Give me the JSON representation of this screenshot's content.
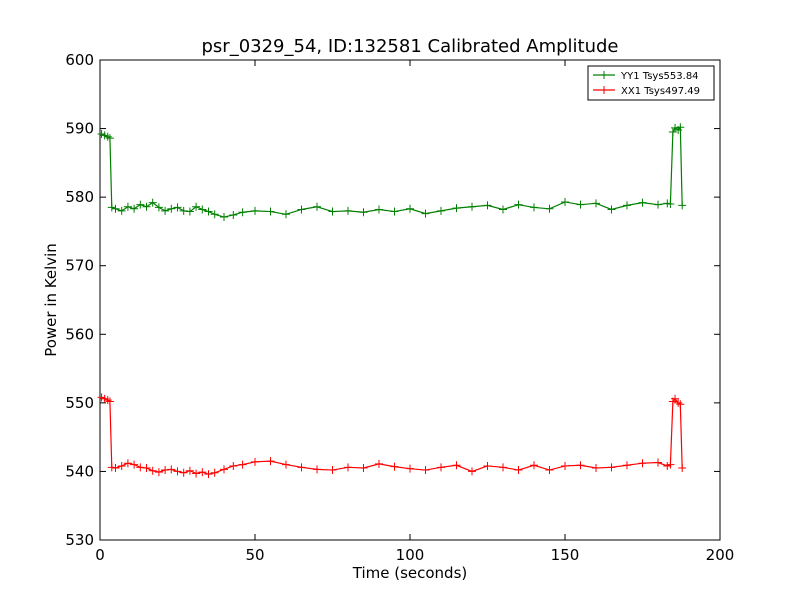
{
  "chart_data": {
    "type": "line",
    "title": "psr_0329_54, ID:132581 Calibrated Amplitude",
    "xlabel": "Time (seconds)",
    "ylabel": "Power in Kelvin",
    "xlim": [
      0,
      200
    ],
    "ylim": [
      530,
      600
    ],
    "xticks": [
      0,
      50,
      100,
      150,
      200
    ],
    "yticks": [
      530,
      540,
      550,
      560,
      570,
      580,
      590,
      600
    ],
    "grid": false,
    "legend_position": "top-right",
    "marker": "plus",
    "series": [
      {
        "name": "YY1 Tsys553.84",
        "color": "#008000",
        "x": [
          0.5,
          1.5,
          2.5,
          3.2,
          3.8,
          5,
          7,
          9,
          11,
          13,
          15,
          17,
          19,
          21,
          23,
          25,
          27,
          29,
          31,
          33,
          35,
          37,
          40,
          43,
          46,
          50,
          55,
          60,
          65,
          70,
          75,
          80,
          85,
          90,
          95,
          100,
          105,
          110,
          115,
          120,
          125,
          130,
          135,
          140,
          145,
          150,
          155,
          160,
          165,
          170,
          175,
          180,
          183,
          184,
          184.8,
          185.5,
          186.5,
          187.2,
          187.8
        ],
        "y": [
          589.2,
          589.0,
          588.8,
          588.6,
          578.5,
          578.3,
          578.0,
          578.6,
          578.3,
          578.9,
          578.6,
          579.2,
          578.5,
          578.0,
          578.3,
          578.5,
          578.0,
          577.9,
          578.6,
          578.2,
          577.9,
          577.5,
          577.1,
          577.4,
          577.8,
          578.0,
          577.9,
          577.5,
          578.2,
          578.6,
          577.9,
          578.0,
          577.8,
          578.2,
          577.9,
          578.3,
          577.6,
          578.0,
          578.4,
          578.6,
          578.8,
          578.2,
          578.9,
          578.5,
          578.3,
          579.3,
          578.9,
          579.1,
          578.2,
          578.8,
          579.2,
          578.9,
          579.1,
          579.0,
          589.5,
          590.1,
          589.8,
          590.2,
          578.8
        ]
      },
      {
        "name": "XX1 Tsys497.49",
        "color": "#ff0000",
        "x": [
          0.5,
          1.5,
          2.5,
          3.2,
          3.8,
          5,
          7,
          9,
          11,
          13,
          15,
          17,
          19,
          21,
          23,
          25,
          27,
          29,
          31,
          33,
          35,
          37,
          40,
          43,
          46,
          50,
          55,
          60,
          65,
          70,
          75,
          80,
          85,
          90,
          95,
          100,
          105,
          110,
          115,
          120,
          125,
          130,
          135,
          140,
          145,
          150,
          155,
          160,
          165,
          170,
          175,
          180,
          183,
          184,
          184.8,
          185.5,
          186.5,
          187.2,
          187.8
        ],
        "y": [
          550.8,
          550.6,
          550.4,
          550.2,
          540.6,
          540.5,
          540.8,
          541.2,
          541.0,
          540.6,
          540.5,
          540.1,
          539.9,
          540.2,
          540.3,
          540.0,
          539.8,
          540.1,
          539.7,
          539.9,
          539.6,
          539.8,
          540.3,
          540.8,
          541.0,
          541.4,
          541.5,
          541.0,
          540.6,
          540.3,
          540.2,
          540.6,
          540.5,
          541.1,
          540.7,
          540.4,
          540.2,
          540.6,
          540.9,
          540.0,
          540.8,
          540.6,
          540.2,
          540.9,
          540.2,
          540.8,
          540.9,
          540.5,
          540.6,
          540.9,
          541.2,
          541.3,
          540.8,
          541.0,
          550.2,
          550.6,
          550.0,
          549.8,
          540.5
        ]
      }
    ]
  }
}
